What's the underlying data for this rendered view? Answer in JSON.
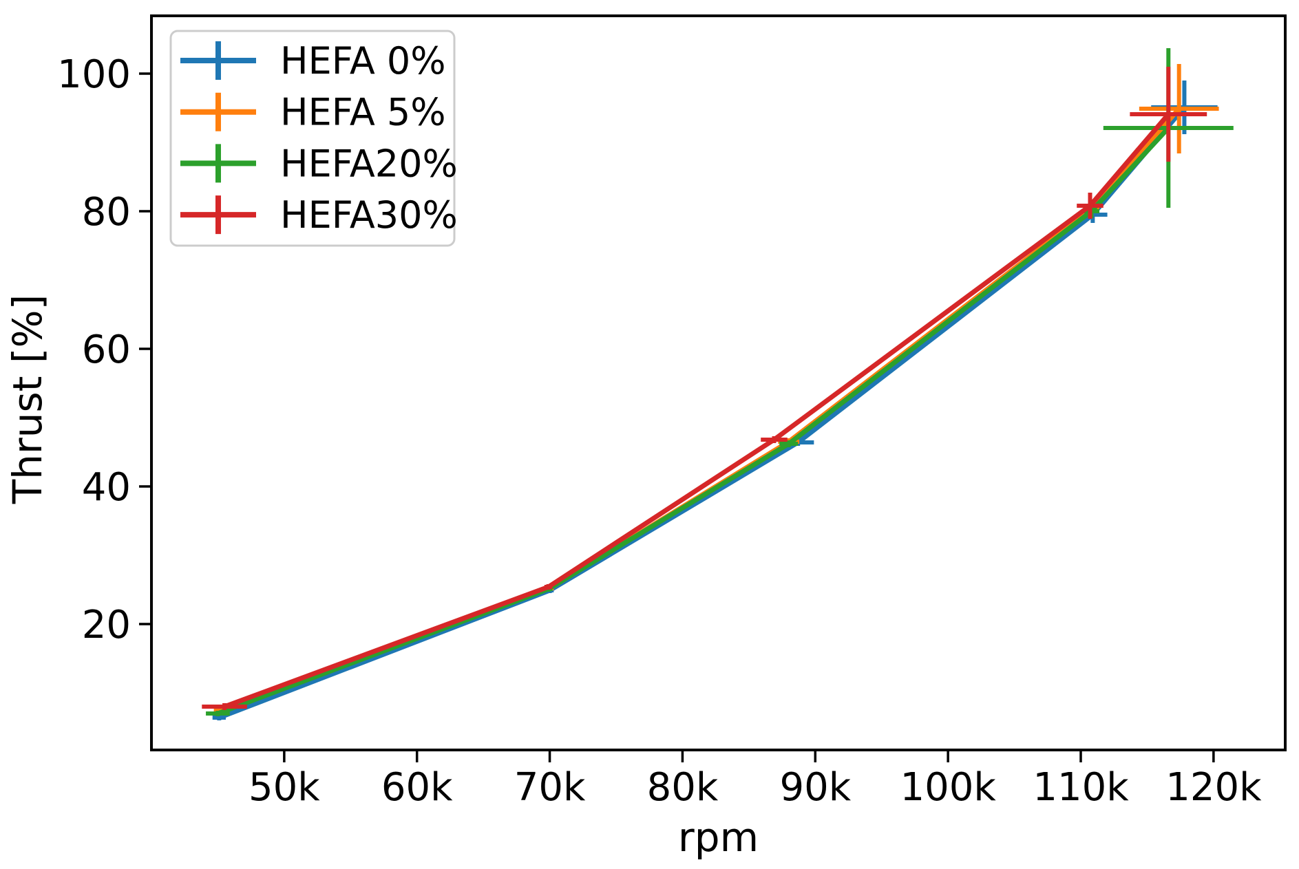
{
  "chart_data": {
    "type": "line",
    "title": "",
    "xlabel": "rpm",
    "ylabel": "Thrust [%]",
    "x_unit": "rpm (thousands, shown with k suffix)",
    "xlim": [
      40,
      125.4
    ],
    "ylim": [
      1.7,
      108.4
    ],
    "x_ticks": [
      50,
      60,
      70,
      80,
      90,
      100,
      110,
      120
    ],
    "x_tick_labels": [
      "50k",
      "60k",
      "70k",
      "80k",
      "90k",
      "100k",
      "110k",
      "120k"
    ],
    "y_ticks": [
      20,
      40,
      60,
      80,
      100
    ],
    "y_tick_labels": [
      "20",
      "40",
      "60",
      "80",
      "100"
    ],
    "grid": false,
    "legend_position": "upper left",
    "marker": "errorbar-cross",
    "series": [
      {
        "name": "HEFA 0%",
        "color": "#1f77b4",
        "x": [
          45.1,
          70.0,
          88.7,
          110.9,
          117.8
        ],
        "y": [
          6.4,
          24.9,
          46.4,
          79.5,
          95.1
        ],
        "xerr": [
          0.5,
          0.3,
          1.2,
          1.1,
          2.5
        ],
        "yerr": [
          0.4,
          0.4,
          0.5,
          1.2,
          3.9
        ]
      },
      {
        "name": "HEFA 5%",
        "color": "#ff7f0e",
        "x": [
          45.2,
          70.0,
          88.0,
          110.8,
          117.4
        ],
        "y": [
          7.6,
          25.2,
          46.5,
          80.3,
          94.9
        ],
        "xerr": [
          0.5,
          0.3,
          0.8,
          0.6,
          3.0
        ],
        "yerr": [
          0.4,
          0.4,
          0.5,
          1.0,
          6.5
        ]
      },
      {
        "name": "HEFA20%",
        "color": "#2ca02c",
        "x": [
          45.0,
          69.9,
          88.0,
          110.8,
          116.6
        ],
        "y": [
          7.0,
          25.1,
          46.2,
          80.0,
          92.1
        ],
        "xerr": [
          0.9,
          0.3,
          0.7,
          0.6,
          4.9
        ],
        "yerr": [
          0.4,
          0.4,
          0.5,
          1.0,
          11.6
        ]
      },
      {
        "name": "HEFA30%",
        "color": "#d62728",
        "x": [
          45.5,
          69.9,
          86.9,
          110.7,
          116.6
        ],
        "y": [
          8.0,
          25.4,
          46.8,
          80.8,
          94.1
        ],
        "xerr": [
          1.7,
          0.3,
          1.0,
          1.0,
          2.9
        ],
        "yerr": [
          0.5,
          0.4,
          0.5,
          1.9,
          6.9
        ]
      }
    ],
    "axis_color": "#000000",
    "legend_border_color": "#cccccc",
    "legend_background": "#ffffff"
  }
}
